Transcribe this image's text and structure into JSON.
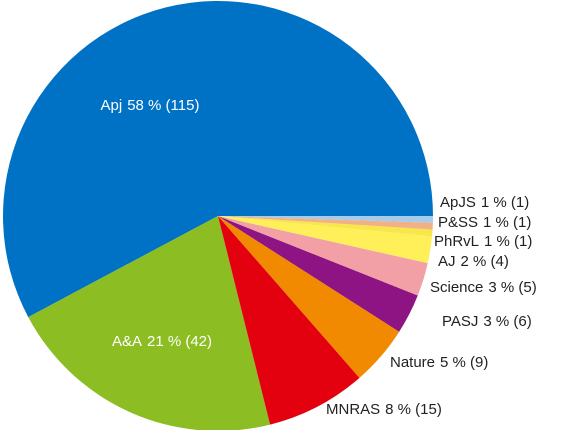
{
  "chart_data": {
    "type": "pie",
    "categories": [
      "Apj",
      "A&A",
      "MNRAS",
      "Nature",
      "PASJ",
      "Science",
      "AJ",
      "PhRvL",
      "P&SS",
      "ApJS"
    ],
    "values": [
      115,
      42,
      15,
      9,
      6,
      5,
      4,
      1,
      1,
      1
    ],
    "value_labels": [
      "58 % (115)",
      "21 % (42)",
      "8 % (15)",
      "5 % (9)",
      "3 % (6)",
      "3 % (5)",
      "2 % (4)",
      "1 % (1)",
      "1 % (1)",
      "1 % (1)"
    ],
    "colors": [
      "#0072c6",
      "#8cbd22",
      "#e3000f",
      "#f18a00",
      "#8e1383",
      "#f29fa6",
      "#fff05a",
      "#f7e74a",
      "#f2b184",
      "#a7cbe8"
    ]
  }
}
